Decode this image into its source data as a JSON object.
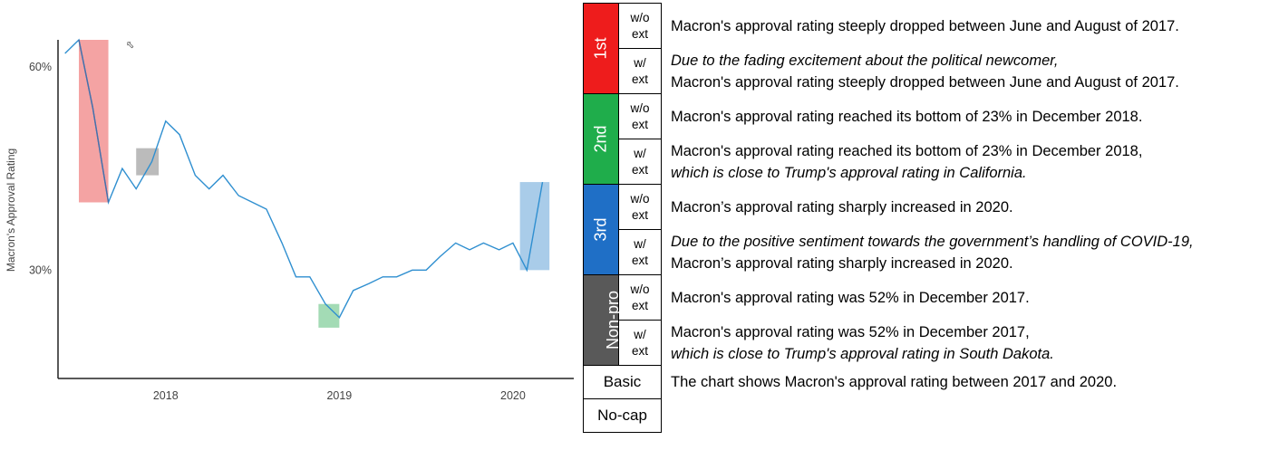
{
  "chart_data": {
    "type": "line",
    "title": "",
    "xlabel": "",
    "ylabel": "Macron's Approval Rating",
    "xlim": [
      2017.38,
      2020.35
    ],
    "ylim": [
      14,
      64
    ],
    "x_ticks": [
      {
        "value": 2018.0,
        "label": "2018"
      },
      {
        "value": 2019.0,
        "label": "2019"
      },
      {
        "value": 2020.0,
        "label": "2020"
      }
    ],
    "y_ticks": [
      {
        "value": 30,
        "label": "30%"
      },
      {
        "value": 60,
        "label": "60%"
      }
    ],
    "grid": false,
    "series": [
      {
        "color": "#2f8fd0",
        "x": [
          2017.42,
          2017.5,
          2017.58,
          2017.67,
          2017.75,
          2017.83,
          2017.92,
          2018.0,
          2018.08,
          2018.17,
          2018.25,
          2018.33,
          2018.42,
          2018.5,
          2018.58,
          2018.67,
          2018.75,
          2018.83,
          2018.92,
          2019.0,
          2019.08,
          2019.17,
          2019.25,
          2019.33,
          2019.42,
          2019.5,
          2019.58,
          2019.67,
          2019.75,
          2019.83,
          2019.92,
          2020.0,
          2020.08,
          2020.17
        ],
        "y": [
          62,
          64,
          54,
          40,
          45,
          42,
          46,
          52,
          50,
          44,
          42,
          44,
          41,
          40,
          39,
          34,
          29,
          29,
          25,
          23,
          27,
          28,
          29,
          29,
          30,
          30,
          32,
          34,
          33,
          34,
          33,
          34,
          30,
          43
        ]
      }
    ],
    "highlights": [
      {
        "x": [
          2017.5,
          2017.67
        ],
        "y": [
          40,
          64
        ],
        "color": "#f4a3a3"
      },
      {
        "x": [
          2017.83,
          2017.96
        ],
        "y": [
          44,
          48
        ],
        "color": "#bbbbbb"
      },
      {
        "x": [
          2018.88,
          2019.0
        ],
        "y": [
          21.5,
          25
        ],
        "color": "#a3dbb5"
      },
      {
        "x": [
          2020.04,
          2020.21
        ],
        "y": [
          30,
          43
        ],
        "color": "#a9cce9"
      }
    ],
    "highlight_segment": {
      "x": [
        2017.5,
        2017.58,
        2017.67
      ],
      "y": [
        64,
        54,
        40
      ],
      "color": "#4a6fa8"
    }
  },
  "captions": {
    "groups": [
      {
        "label": "1st",
        "color": "#ee1c1c",
        "rows": [
          {
            "ext": [
              "w/o",
              "ext"
            ],
            "lines": [
              {
                "text": "Macron's approval rating steeply dropped between June and August of 2017.",
                "italic": false
              }
            ]
          },
          {
            "ext": [
              "w/",
              "ext"
            ],
            "lines": [
              {
                "text": "Due to the fading excitement about the political newcomer,",
                "italic": true
              },
              {
                "text": "Macron's approval rating steeply dropped between June and August of 2017.",
                "italic": false
              }
            ]
          }
        ]
      },
      {
        "label": "2nd",
        "color": "#1fad4b",
        "rows": [
          {
            "ext": [
              "w/o",
              "ext"
            ],
            "lines": [
              {
                "text": "Macron's approval rating reached its bottom of 23% in December 2018.",
                "italic": false
              }
            ]
          },
          {
            "ext": [
              "w/",
              "ext"
            ],
            "lines": [
              {
                "text": "Macron's approval rating reached its bottom of 23% in December 2018,",
                "italic": false
              },
              {
                "text": "which is close to Trump's approval rating in California.",
                "italic": true
              }
            ]
          }
        ]
      },
      {
        "label": "3rd",
        "color": "#1f6fc6",
        "rows": [
          {
            "ext": [
              "w/o",
              "ext"
            ],
            "lines": [
              {
                "text": "Macron’s approval rating sharply increased in 2020.",
                "italic": false
              }
            ]
          },
          {
            "ext": [
              "w/",
              "ext"
            ],
            "lines": [
              {
                "text": "Due to the positive sentiment towards the government’s handling of COVID-19,",
                "italic": true
              },
              {
                "text": "Macron’s approval rating sharply increased in 2020.",
                "italic": false
              }
            ]
          }
        ]
      },
      {
        "label": "Non-pro",
        "color": "#595959",
        "rows": [
          {
            "ext": [
              "w/o",
              "ext"
            ],
            "lines": [
              {
                "text": "Macron's approval rating was 52% in December 2017.",
                "italic": false
              }
            ]
          },
          {
            "ext": [
              "w/",
              "ext"
            ],
            "lines": [
              {
                "text": "Macron's approval rating was 52% in December 2017,",
                "italic": false
              },
              {
                "text": "which is close to Trump's approval rating in South Dakota.",
                "italic": true
              }
            ]
          }
        ]
      }
    ],
    "basic": {
      "label": "Basic",
      "text": "The chart shows Macron's approval rating between 2017 and 2020."
    },
    "nocap": {
      "label": "No-cap",
      "text": ""
    }
  }
}
